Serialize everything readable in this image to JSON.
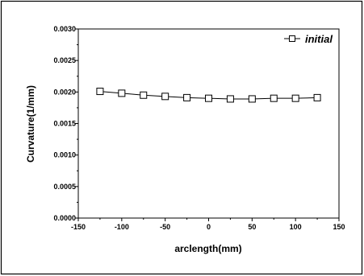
{
  "chart_data": {
    "type": "line",
    "xlabel": "arclength(mm)",
    "ylabel": "Curvature(1/mm)",
    "xlim": [
      -150,
      150
    ],
    "ylim": [
      0.0,
      0.003
    ],
    "x_ticks": [
      -150,
      -100,
      -50,
      0,
      50,
      100,
      150
    ],
    "x_tick_labels": [
      "-150",
      "-100",
      "-50",
      "0",
      "50",
      "100",
      "150"
    ],
    "y_ticks": [
      0.0,
      0.0005,
      0.001,
      0.0015,
      0.002,
      0.0025,
      0.003
    ],
    "y_tick_labels": [
      "0.0000",
      "0.0005",
      "0.0010",
      "0.0015",
      "0.0020",
      "0.0025",
      "0.0030"
    ],
    "grid": false,
    "legend_position": "top-right",
    "series": [
      {
        "name": "initial",
        "marker": "open-square",
        "color": "#000000",
        "x": [
          -125,
          -100,
          -75,
          -50,
          -25,
          0,
          25,
          50,
          75,
          100,
          125
        ],
        "y": [
          0.00201,
          0.00198,
          0.00195,
          0.00193,
          0.00191,
          0.0019,
          0.00189,
          0.00189,
          0.0019,
          0.0019,
          0.00191
        ]
      }
    ]
  }
}
